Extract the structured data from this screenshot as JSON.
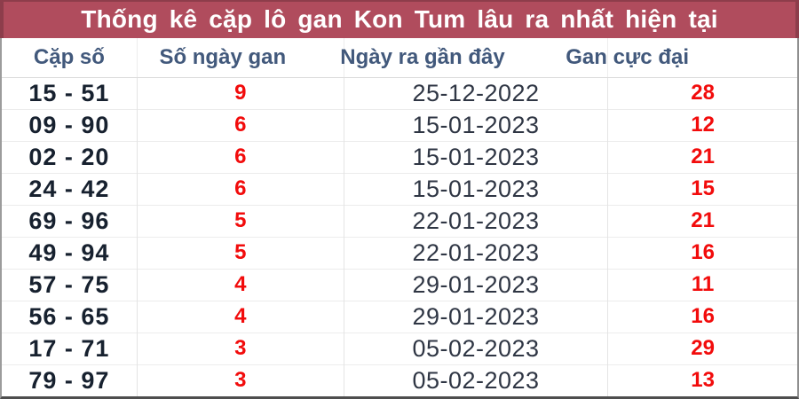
{
  "title": "Thống kê cặp lô gan Kon Tum lâu ra nhất hiện tại",
  "colors": {
    "banner_bg": "#b04c5d",
    "banner_edge": "#8d3d4b",
    "header_text": "#42597c",
    "pair_text": "#17212f",
    "date_text": "#2f3644",
    "value_red": "#f20c0c"
  },
  "table": {
    "columns": [
      {
        "key": "pair",
        "label": "Cặp số"
      },
      {
        "key": "days",
        "label": "Số ngày gan"
      },
      {
        "key": "date",
        "label": "Ngày ra gần đây"
      },
      {
        "key": "max",
        "label": "Gan cực đại"
      }
    ],
    "rows": [
      {
        "pair": "15 - 51",
        "days": "9",
        "date": "25-12-2022",
        "max": "28"
      },
      {
        "pair": "09 - 90",
        "days": "6",
        "date": "15-01-2023",
        "max": "12"
      },
      {
        "pair": "02 - 20",
        "days": "6",
        "date": "15-01-2023",
        "max": "21"
      },
      {
        "pair": "24 - 42",
        "days": "6",
        "date": "15-01-2023",
        "max": "15"
      },
      {
        "pair": "69 - 96",
        "days": "5",
        "date": "22-01-2023",
        "max": "21"
      },
      {
        "pair": "49 - 94",
        "days": "5",
        "date": "22-01-2023",
        "max": "16"
      },
      {
        "pair": "57 - 75",
        "days": "4",
        "date": "29-01-2023",
        "max": "11"
      },
      {
        "pair": "56 - 65",
        "days": "4",
        "date": "29-01-2023",
        "max": "16"
      },
      {
        "pair": "17 - 71",
        "days": "3",
        "date": "05-02-2023",
        "max": "29"
      },
      {
        "pair": "79 - 97",
        "days": "3",
        "date": "05-02-2023",
        "max": "13"
      }
    ]
  }
}
